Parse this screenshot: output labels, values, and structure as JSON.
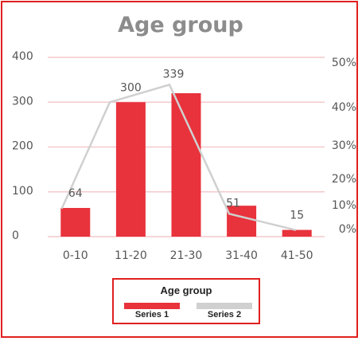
{
  "chart_data": {
    "type": "bar",
    "title": "Age group",
    "categories": [
      "0-10",
      "11-20",
      "21-30",
      "31-40",
      "41-50"
    ],
    "series": [
      {
        "name": "Series 1",
        "type": "bar",
        "values": [
          64,
          300,
          320,
          69,
          15
        ],
        "labels": [
          "64",
          "300",
          "",
          "",
          "15"
        ],
        "color": "#e8323c"
      },
      {
        "name": "Series 2",
        "type": "line",
        "values": [
          64,
          300,
          339,
          51,
          15
        ],
        "labels": [
          "",
          "",
          "339",
          "51",
          ""
        ],
        "color": "#d0d0d0"
      }
    ],
    "y_left": {
      "ticks": [
        "0",
        "100",
        "200",
        "300",
        "400"
      ],
      "ylim": [
        0,
        400
      ]
    },
    "y_right": {
      "ticks": [
        "0%",
        "10%",
        "20%",
        "30%",
        "40%",
        "50%"
      ]
    },
    "grid": true,
    "legend": {
      "title": "Age group",
      "position": "bottom"
    }
  }
}
